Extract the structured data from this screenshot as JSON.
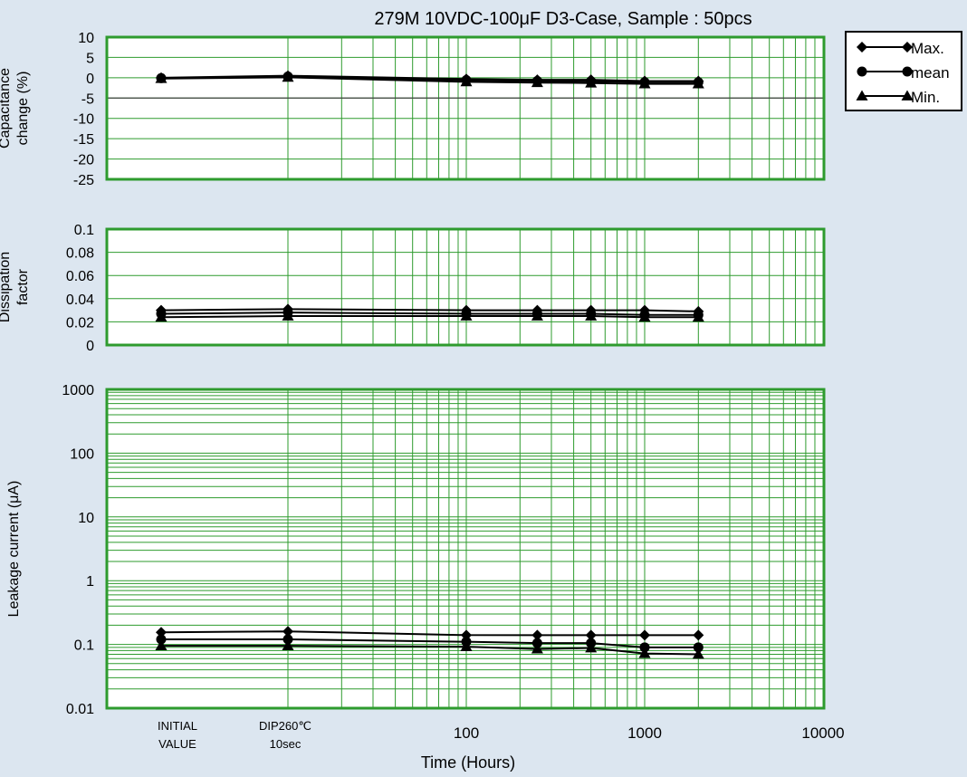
{
  "title": "279M  10VDC-100μF D3-Case, Sample : 50pcs",
  "legend": {
    "placement": "top-right",
    "items": [
      "Max.",
      "mean",
      "Min."
    ]
  },
  "colors": {
    "background": "#dce6f0",
    "grid": "#2e9b2e",
    "line": "#000000",
    "plot_bg": "#ffffff"
  },
  "chart_data": [
    {
      "type": "line",
      "ylabel": [
        "Capacitance",
        "change  (%)"
      ],
      "ylim": [
        -25,
        10
      ],
      "yscale": "linear",
      "yticks": [
        "10",
        "5",
        "0",
        "-5",
        "-10",
        "-15",
        "-20",
        "-25"
      ],
      "x": [
        "INITIAL VALUE",
        "DIP260℃ 10sec",
        100,
        250,
        500,
        1000,
        2000
      ],
      "series": [
        {
          "name": "Max.",
          "marker": "diamond",
          "values": [
            0.0,
            0.5,
            -0.3,
            -0.5,
            -0.5,
            -0.8,
            -0.8
          ]
        },
        {
          "name": "mean",
          "marker": "circle",
          "values": [
            -0.1,
            0.3,
            -0.6,
            -0.8,
            -0.9,
            -1.1,
            -1.1
          ]
        },
        {
          "name": "Min.",
          "marker": "triangle",
          "values": [
            -0.2,
            0.1,
            -1.0,
            -1.2,
            -1.3,
            -1.5,
            -1.5
          ]
        }
      ]
    },
    {
      "type": "line",
      "ylabel": [
        "Dissipation",
        "factor"
      ],
      "ylim": [
        0,
        0.1
      ],
      "yscale": "linear",
      "yticks": [
        "0.1",
        "0.08",
        "0.06",
        "0.04",
        "0.02",
        "0"
      ],
      "x": [
        "INITIAL VALUE",
        "DIP260℃ 10sec",
        100,
        250,
        500,
        1000,
        2000
      ],
      "series": [
        {
          "name": "Max.",
          "marker": "diamond",
          "values": [
            0.03,
            0.031,
            0.03,
            0.03,
            0.03,
            0.03,
            0.029
          ]
        },
        {
          "name": "mean",
          "marker": "circle",
          "values": [
            0.027,
            0.028,
            0.027,
            0.027,
            0.027,
            0.026,
            0.026
          ]
        },
        {
          "name": "Min.",
          "marker": "triangle",
          "values": [
            0.024,
            0.025,
            0.025,
            0.025,
            0.025,
            0.024,
            0.024
          ]
        }
      ]
    },
    {
      "type": "line",
      "ylabel": [
        "Leakage  current (μA)"
      ],
      "ylim": [
        0.01,
        1000
      ],
      "yscale": "log",
      "yticks": [
        "1000",
        "100",
        "10",
        "1",
        "0.1",
        "0.01"
      ],
      "xlabel": "Time (Hours)",
      "xticks": [
        "INITIAL\nVALUE",
        "DIP260℃\n10sec",
        "100",
        "1000",
        "10000"
      ],
      "x": [
        "INITIAL VALUE",
        "DIP260℃ 10sec",
        100,
        250,
        500,
        1000,
        2000
      ],
      "series": [
        {
          "name": "Max.",
          "marker": "diamond",
          "values": [
            0.155,
            0.16,
            0.14,
            0.14,
            0.14,
            0.14,
            0.14
          ]
        },
        {
          "name": "mean",
          "marker": "circle",
          "values": [
            0.12,
            0.12,
            0.11,
            0.105,
            0.105,
            0.09,
            0.09
          ]
        },
        {
          "name": "Min.",
          "marker": "triangle",
          "values": [
            0.095,
            0.095,
            0.092,
            0.085,
            0.088,
            0.072,
            0.07
          ]
        }
      ]
    }
  ]
}
